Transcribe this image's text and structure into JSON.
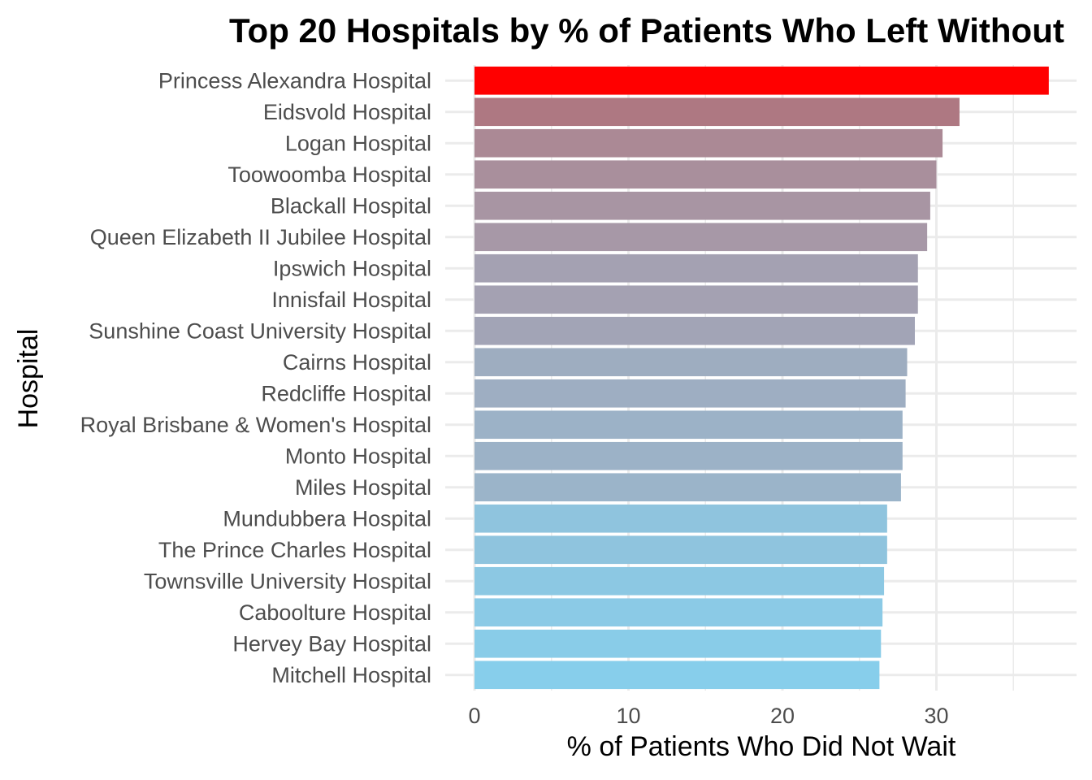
{
  "chart_data": {
    "type": "bar",
    "orientation": "horizontal",
    "title": "Top 20 Hospitals by % of Patients Who Left Without",
    "xlabel": "% of Patients Who Did Not Wait",
    "ylabel": "Hospital",
    "xlim": [
      0,
      38.5
    ],
    "x_ticks": [
      0,
      10,
      20,
      30
    ],
    "grid": true,
    "legend": "none",
    "color_scale": {
      "low": "#87CEEB",
      "high": "#FF0000"
    },
    "categories": [
      "Princess Alexandra Hospital",
      "Eidsvold Hospital",
      "Logan Hospital",
      "Toowoomba Hospital",
      "Blackall Hospital",
      "Queen Elizabeth II Jubilee Hospital",
      "Ipswich Hospital",
      "Innisfail Hospital",
      "Sunshine Coast University Hospital",
      "Cairns Hospital",
      "Redcliffe Hospital",
      "Royal Brisbane & Women's Hospital",
      "Monto Hospital",
      "Miles Hospital",
      "Mundubbera Hospital",
      "The Prince Charles Hospital",
      "Townsville University Hospital",
      "Caboolture Hospital",
      "Hervey Bay Hospital",
      "Mitchell Hospital"
    ],
    "values": [
      37.3,
      31.5,
      30.4,
      30.0,
      29.6,
      29.4,
      28.8,
      28.8,
      28.6,
      28.1,
      28.0,
      27.8,
      27.8,
      27.7,
      26.8,
      26.8,
      26.6,
      26.5,
      26.4,
      26.3
    ]
  }
}
